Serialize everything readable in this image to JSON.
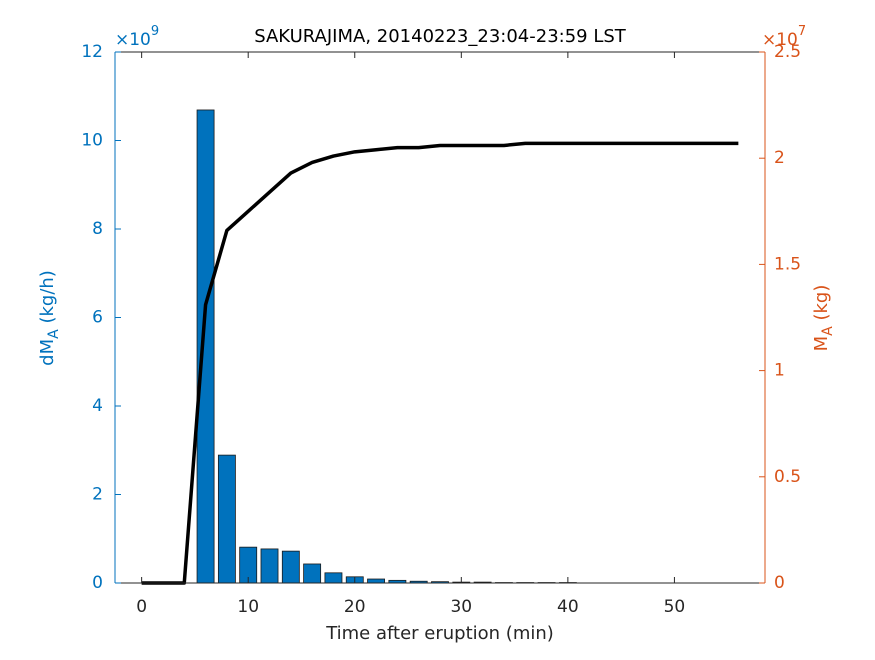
{
  "chart_data": {
    "type": "bar_line",
    "title": "SAKURAJIMA, 20140223_23:04-23:59 LST",
    "xlabel": "Time after eruption (min)",
    "ylabel": {
      "main": "dM",
      "sub": "A",
      "unit": " (kg/h)"
    },
    "y2label": {
      "main": "M",
      "sub": "A",
      "unit": " (kg)"
    },
    "y_multiplier": {
      "base": "×10",
      "exp": "9"
    },
    "y2_multiplier": {
      "base": "×10",
      "exp": "7"
    },
    "x": [
      0,
      2,
      4,
      6,
      8,
      10,
      12,
      14,
      16,
      18,
      20,
      22,
      24,
      26,
      28,
      30,
      32,
      34,
      36,
      38,
      40,
      42,
      44,
      46,
      48,
      50,
      52,
      54,
      56
    ],
    "series": [
      {
        "type": "bar",
        "axis": "y",
        "color": "#0072bd",
        "values": [
          0,
          0,
          0,
          10.69,
          2.89,
          0.81,
          0.77,
          0.72,
          0.43,
          0.23,
          0.14,
          0.09,
          0.06,
          0.04,
          0.03,
          0.02,
          0.02,
          0.01,
          0.01,
          0.01,
          0.01,
          0,
          0,
          0,
          0,
          0,
          0,
          0,
          0
        ]
      },
      {
        "type": "line",
        "axis": "y2",
        "color": "#000000",
        "values": [
          0,
          0,
          0,
          1.31,
          1.66,
          1.75,
          1.84,
          1.93,
          1.98,
          2.01,
          2.03,
          2.04,
          2.05,
          2.05,
          2.06,
          2.06,
          2.06,
          2.06,
          2.07,
          2.07,
          2.07,
          2.07,
          2.07,
          2.07,
          2.07,
          2.07,
          2.07,
          2.07,
          2.07
        ]
      }
    ],
    "xlim": [
      -2.5,
      58.5
    ],
    "xticks": [
      0,
      10,
      20,
      30,
      40,
      50
    ],
    "ylim": [
      0,
      12
    ],
    "yticks": [
      0,
      2,
      4,
      6,
      8,
      10,
      12
    ],
    "ycolor": "#0072bd",
    "y2lim": [
      0,
      2.5
    ],
    "y2ticks": [
      0,
      0.5,
      1,
      1.5,
      2,
      2.5
    ],
    "y2color": "#d95319"
  }
}
